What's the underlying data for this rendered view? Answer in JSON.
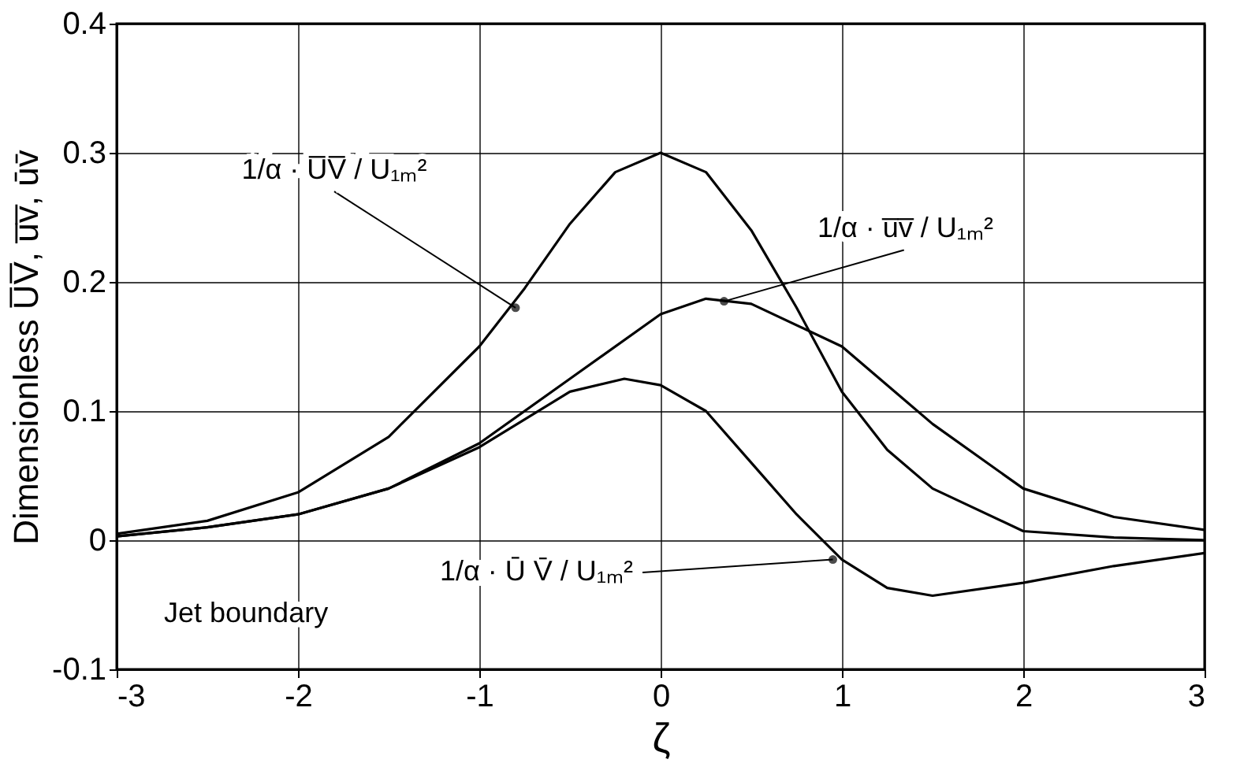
{
  "chart_data": {
    "type": "line",
    "xlabel": "ζ",
    "ylabel": "Dimensionless U̅V̅, u̅v̅, ūv̄",
    "xlim": [
      -3,
      3
    ],
    "ylim": [
      -0.1,
      0.4
    ],
    "xticks": [
      -3,
      -2,
      -1,
      0,
      1,
      2,
      3
    ],
    "yticks": [
      -0.1,
      0,
      0.1,
      0.2,
      0.3,
      0.4
    ],
    "grid": true,
    "line_style": "solid",
    "marker": "none",
    "series": [
      {
        "color": "#000000",
        "x": [
          -3,
          -2.5,
          -2,
          -1.5,
          -1,
          -0.75,
          -0.5,
          -0.25,
          0,
          0.25,
          0.5,
          0.75,
          1,
          1.25,
          1.5,
          2,
          2.5,
          3
        ],
        "values": [
          0.005,
          0.015,
          0.037,
          0.08,
          0.15,
          0.195,
          0.245,
          0.285,
          0.3,
          0.285,
          0.24,
          0.18,
          0.115,
          0.07,
          0.04,
          0.007,
          0.002,
          0.0
        ]
      },
      {
        "color": "#000000",
        "x": [
          -3,
          -2.5,
          -2,
          -1.5,
          -1,
          -0.5,
          0,
          0.25,
          0.5,
          1,
          1.5,
          2,
          2.5,
          3
        ],
        "values": [
          0.003,
          0.01,
          0.02,
          0.04,
          0.075,
          0.125,
          0.175,
          0.187,
          0.183,
          0.15,
          0.09,
          0.04,
          0.018,
          0.008
        ]
      },
      {
        "color": "#000000",
        "x": [
          -3,
          -2.5,
          -2,
          -1.5,
          -1,
          -0.5,
          -0.2,
          0,
          0.25,
          0.5,
          0.75,
          1,
          1.25,
          1.5,
          2,
          2.5,
          3
        ],
        "values": [
          0.003,
          0.01,
          0.02,
          0.04,
          0.072,
          0.115,
          0.125,
          0.12,
          0.1,
          0.06,
          0.02,
          -0.015,
          -0.037,
          -0.043,
          -0.033,
          -0.02,
          -0.01
        ]
      }
    ],
    "annotations": [
      {
        "text": "1/α · U̅V̅ / U₁ₘ²",
        "x": -0.8,
        "y": 0.18
      },
      {
        "text": "1/α · u̅v̅ / U₁ₘ²",
        "x": 0.35,
        "y": 0.185
      },
      {
        "text": "1/α · Ū V̄ / U₁ₘ²",
        "x": 0.95,
        "y": -0.015
      },
      "Jet boundary"
    ]
  }
}
